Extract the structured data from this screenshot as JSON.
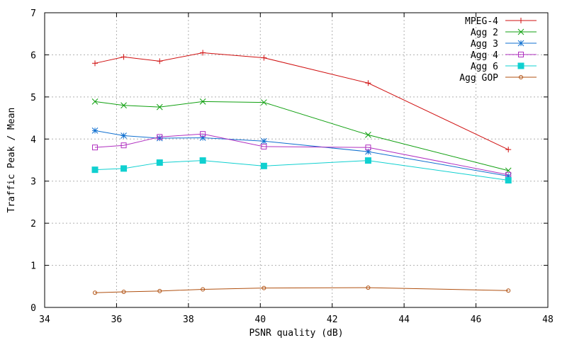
{
  "chart_data": {
    "type": "line",
    "title": "",
    "xlabel": "PSNR quality (dB)",
    "ylabel": "Traffic Peak / Mean",
    "xlim": [
      34,
      48
    ],
    "ylim": [
      0,
      7
    ],
    "xticks": [
      34,
      36,
      38,
      40,
      42,
      44,
      46,
      48
    ],
    "yticks": [
      0,
      1,
      2,
      3,
      4,
      5,
      6,
      7
    ],
    "grid": true,
    "legend_position": "top-right",
    "x": [
      35.4,
      36.2,
      37.2,
      38.4,
      40.1,
      43.0,
      46.9
    ],
    "series": [
      {
        "name": "MPEG-4",
        "marker": "plus",
        "color": "#d01010",
        "values": [
          5.8,
          5.95,
          5.85,
          6.05,
          5.93,
          5.33,
          3.75
        ]
      },
      {
        "name": "Agg 2",
        "marker": "cross",
        "color": "#10a010",
        "values": [
          4.89,
          4.8,
          4.76,
          4.89,
          4.87,
          4.1,
          3.25
        ]
      },
      {
        "name": "Agg 3",
        "marker": "star",
        "color": "#1070d0",
        "values": [
          4.2,
          4.08,
          4.02,
          4.03,
          3.95,
          3.7,
          3.12
        ]
      },
      {
        "name": "Agg 4",
        "marker": "box",
        "color": "#b030c0",
        "values": [
          3.8,
          3.85,
          4.05,
          4.12,
          3.82,
          3.8,
          3.15
        ]
      },
      {
        "name": "Agg 6",
        "marker": "filled-box",
        "color": "#10d0d0",
        "values": [
          3.27,
          3.3,
          3.44,
          3.49,
          3.36,
          3.49,
          3.02
        ]
      },
      {
        "name": "Agg GOP",
        "marker": "circle",
        "color": "#b05010",
        "values": [
          0.35,
          0.37,
          0.39,
          0.43,
          0.46,
          0.47,
          0.4
        ]
      }
    ]
  }
}
